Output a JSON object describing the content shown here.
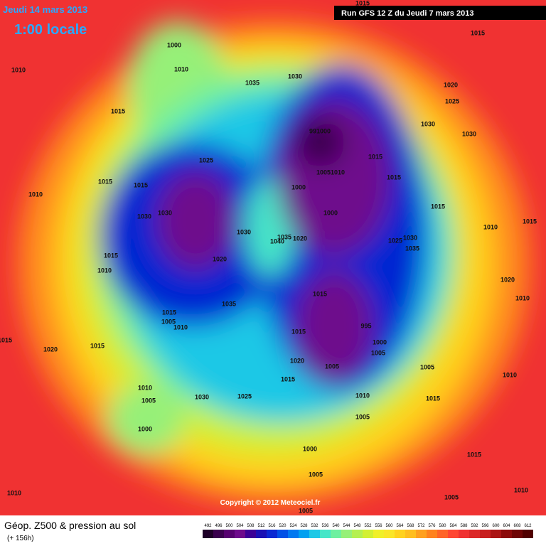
{
  "header": {
    "date": "Jeudi 14 mars 2013",
    "time": "1:00 locale",
    "run": "Run GFS 12 Z du Jeudi 7 mars 2013"
  },
  "footer": {
    "title": "Géop. Z500 & pression au sol",
    "subtitle": "(+ 156h)",
    "copyright": "Copyright © 2012 Meteociel.fr"
  },
  "scale": {
    "labels": [
      "492",
      "496",
      "500",
      "504",
      "508",
      "512",
      "516",
      "520",
      "524",
      "528",
      "532",
      "536",
      "540",
      "544",
      "548",
      "552",
      "556",
      "560",
      "564",
      "568",
      "572",
      "576",
      "580",
      "584",
      "588",
      "592",
      "596",
      "600",
      "604",
      "608",
      "612"
    ],
    "colors": [
      "#1e0028",
      "#3a004e",
      "#560070",
      "#6e0a8c",
      "#3c0096",
      "#1a10b4",
      "#0a28d2",
      "#0050e6",
      "#0078f0",
      "#00a0f0",
      "#1ec8e6",
      "#46e6c8",
      "#6ef0a0",
      "#96f078",
      "#b4f050",
      "#d2f032",
      "#f0f028",
      "#fae628",
      "#ffd21e",
      "#ffbe1e",
      "#ffa01e",
      "#ff821e",
      "#ff6428",
      "#ff4632",
      "#f03232",
      "#dc2828",
      "#c81e1e",
      "#aa1414",
      "#8c0a0a",
      "#6e0505",
      "#500000"
    ]
  },
  "isobars": [
    "1010",
    "1000",
    "1010",
    "1015",
    "1035",
    "1030",
    "1015",
    "1015",
    "1020",
    "1025",
    "1030",
    "1030",
    "991000",
    "1015",
    "1025",
    "1015",
    "1015",
    "10051010",
    "1015",
    "1010",
    "1000",
    "1015",
    "1000",
    "1030",
    "1030",
    "1030",
    "1035",
    "1040",
    "1020",
    "1010",
    "1015",
    "1025",
    "1030",
    "1035",
    "1015",
    "1010",
    "1020",
    "1020",
    "1010",
    "1015",
    "1035",
    "1015",
    "1005",
    "1010",
    "1015",
    "995",
    "1000",
    "1005",
    "1015",
    "1020",
    "1015",
    "1020",
    "1005",
    "1005",
    "1010",
    "1015",
    "1010",
    "1005",
    "1030",
    "1025",
    "1010",
    "1015",
    "1005",
    "1000",
    "1000",
    "1015",
    "1005",
    "1010",
    "1010",
    "1005",
    "1005"
  ]
}
